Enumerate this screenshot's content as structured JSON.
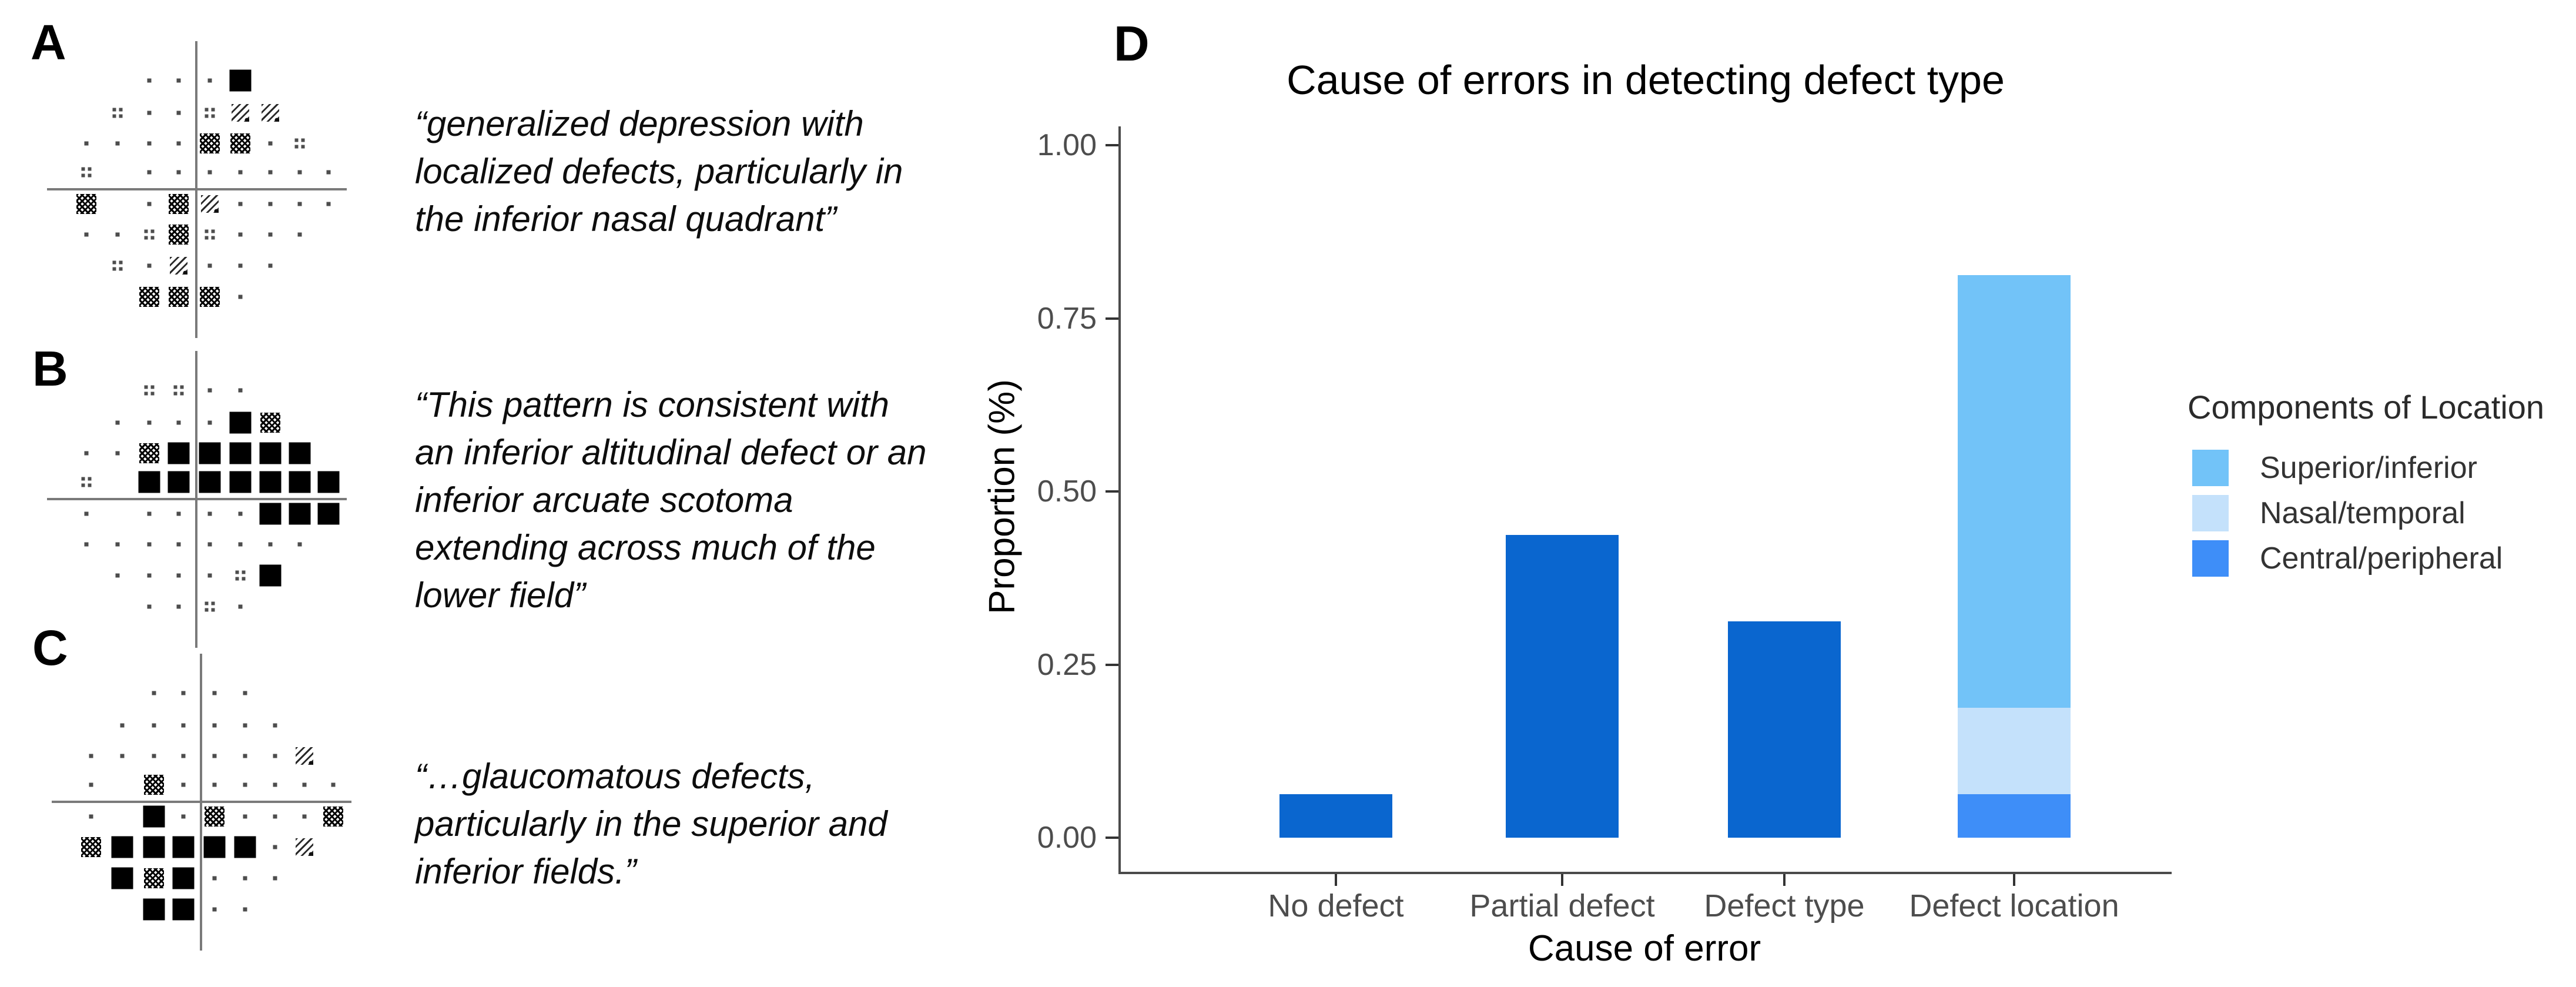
{
  "panels": [
    {
      "id": "A",
      "label": "A",
      "grid": [
        "  ...#   ",
        " :..:rr  ",
        "....xx.: ",
        ": .......",
        "x .xr....",
        "..:x:... ",
        " :.r...  ",
        "  xxx.   "
      ],
      "quote_lines": [
        "“generalized depression with",
        "localized defects, particularly in",
        "the inferior nasal quadrant”"
      ]
    },
    {
      "id": "B",
      "label": "B",
      "grid": [
        "  ::..   ",
        " ....#x  ",
        "..x##### ",
        ": #######",
        ". ....###",
        "........ ",
        " ....:#  ",
        "  ..:.   "
      ],
      "quote_lines": [
        "“This pattern is consistent with",
        "an inferior altitudinal defect or an",
        "inferior arcuate scotoma",
        "extending across much of the",
        "lower field”"
      ]
    },
    {
      "id": "C",
      "label": "C",
      "grid": [
        "  ....   ",
        " ......  ",
        ".......r ",
        ". x......",
        ". #.x...x",
        "x#####.r ",
        " #x#...  ",
        "  ##..   "
      ],
      "quote_lines": [
        "“…glaucomatous defects,",
        "particularly in the superior and",
        "inferior fields.”"
      ]
    }
  ],
  "chart_data": {
    "type": "bar",
    "stacked": true,
    "panel_label": "D",
    "title": "Cause of errors in detecting defect type",
    "xlabel": "Cause of error",
    "ylabel": "Proportion (%)",
    "ylim": [
      0,
      1.0
    ],
    "grid": false,
    "legend_position": "right",
    "categories": [
      "No defect",
      "Partial defect",
      "Defect type",
      "Defect location"
    ],
    "y_ticks": [
      {
        "label": "1.00",
        "value": 1.0
      },
      {
        "label": "0.75",
        "value": 0.75
      },
      {
        "label": "0.50",
        "value": 0.5
      },
      {
        "label": "0.25",
        "value": 0.25
      },
      {
        "label": "0.00",
        "value": 0.0
      }
    ],
    "bars": [
      {
        "category": "No defect",
        "segments": [
          {
            "series": "default",
            "value": 0.0625
          }
        ]
      },
      {
        "category": "Partial defect",
        "segments": [
          {
            "series": "default",
            "value": 0.4375
          }
        ]
      },
      {
        "category": "Defect type",
        "segments": [
          {
            "series": "default",
            "value": 0.3125
          }
        ]
      },
      {
        "category": "Defect location",
        "segments": [
          {
            "series": "Central/peripheral",
            "value": 0.0625
          },
          {
            "series": "Nasal/temporal",
            "value": 0.125
          },
          {
            "series": "Superior/inferior",
            "value": 0.625
          }
        ]
      }
    ],
    "colors": {
      "default": "#0a66cf",
      "Superior/inferior": "#72c3f8",
      "Nasal/temporal": "#c4e1fb",
      "Central/peripheral": "#3e8ef8"
    },
    "legend": {
      "title": "Components of Location",
      "entries": [
        "Superior/inferior",
        "Nasal/temporal",
        "Central/peripheral"
      ]
    }
  }
}
